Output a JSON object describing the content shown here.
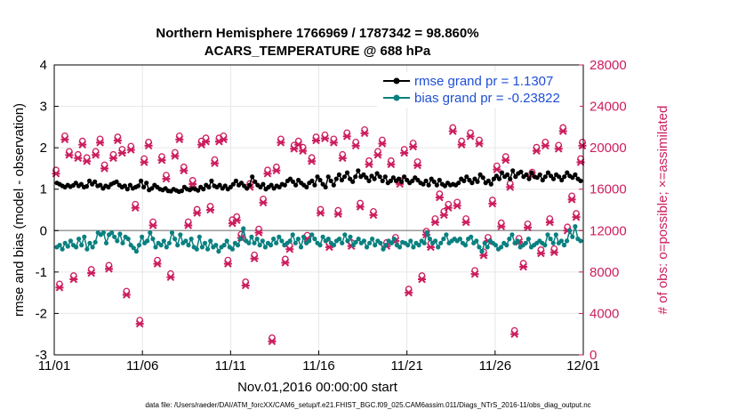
{
  "chart_data": {
    "type": "line",
    "title": "Northern Hemisphere 1766969 / 1787342 = 98.860%",
    "subtitle": "ACARS_TEMPERATURE @ 688 hPa",
    "xlabel": "Nov.01,2016 00:00:00 start",
    "ylabel": "rmse and bias (model - observation)",
    "y2label": "# of obs: o=possible; ×=assimilated",
    "footer": "data file: /Users/raeder/DAI/ATM_forcXX/CAM6_setup/f.e21.FHIST_BGC.f09_025.CAM6assim.011/Diags_NTrS_2016-11/obs_diag_output.nc",
    "x_ticks": [
      "11/01",
      "11/06",
      "11/11",
      "11/16",
      "11/21",
      "11/26",
      "12/01"
    ],
    "x_tick_days": [
      0,
      5,
      10,
      15,
      20,
      25,
      30
    ],
    "xlim": [
      0,
      30
    ],
    "ylim": [
      -3,
      4
    ],
    "y_ticks": [
      "-3",
      "-2",
      "-1",
      "0",
      "1",
      "2",
      "3",
      "4"
    ],
    "y2lim": [
      0,
      28000
    ],
    "y2_ticks": [
      "0",
      "4000",
      "8000",
      "12000",
      "16000",
      "20000",
      "24000",
      "28000"
    ],
    "zero_line": 0,
    "legend": [
      {
        "label": "rmse grand pr = 1.1307",
        "color": "#000000"
      },
      {
        "label": "bias grand pr = -0.23822",
        "color": "#0a8080"
      }
    ],
    "series": [
      {
        "name": "rmse",
        "color": "#000000",
        "values": [
          1.15,
          1.12,
          1.08,
          1.05,
          1.1,
          1.06,
          1.09,
          1.15,
          1.08,
          1.12,
          1.05,
          1.07,
          1.2,
          1.12,
          1.18,
          1.08,
          1.1,
          1.02,
          1.08,
          1.05,
          1.12,
          1.15,
          1.18,
          1.1,
          1.05,
          1.08,
          1.0,
          1.1,
          1.02,
          1.05,
          1.08,
          1.2,
          1.05,
          1.15,
          0.98,
          1.02,
          1.1,
          1.05,
          1.0,
          0.98,
          1.02,
          0.96,
          0.95,
          1.0,
          0.97,
          0.94,
          0.96,
          1.05,
          1.0,
          0.98,
          1.02,
          1.0,
          0.97,
          1.05,
          1.0,
          1.1,
          1.05,
          1.2,
          1.08,
          1.05,
          1.1,
          1.02,
          1.08,
          1.0,
          1.05,
          1.12,
          1.2,
          1.1,
          1.15,
          1.08,
          1.02,
          1.1,
          1.3,
          1.18,
          1.1,
          1.05,
          1.12,
          1.0,
          1.05,
          1.1,
          1.02,
          1.08,
          1.05,
          1.12,
          1.1,
          1.2,
          1.25,
          1.18,
          1.1,
          1.22,
          1.15,
          1.1,
          1.05,
          1.15,
          1.2,
          1.1,
          1.3,
          1.22,
          1.12,
          1.05,
          1.3,
          1.2,
          1.1,
          1.25,
          1.35,
          1.22,
          1.3,
          1.4,
          1.25,
          1.18,
          1.3,
          1.45,
          1.3,
          1.35,
          1.28,
          1.2,
          1.32,
          1.25,
          1.38,
          1.3,
          1.2,
          1.3,
          1.15,
          1.2,
          1.28,
          1.2,
          1.25,
          1.18,
          1.3,
          1.22,
          1.15,
          1.2,
          1.28,
          1.22,
          1.15,
          1.12,
          1.2,
          1.1,
          1.25,
          1.18,
          1.1,
          1.22,
          1.12,
          1.08,
          1.15,
          1.1,
          1.12,
          1.1,
          1.15,
          1.25,
          1.2,
          1.3,
          1.22,
          1.15,
          1.25,
          1.18,
          1.35,
          1.28,
          1.15,
          1.2,
          1.12,
          1.25,
          1.32,
          1.25,
          1.4,
          1.3,
          1.35,
          1.25,
          1.45,
          1.3,
          1.38,
          1.42,
          1.3,
          1.35,
          1.25,
          1.4,
          1.3,
          1.28,
          1.35,
          1.22,
          1.3,
          1.4,
          1.32,
          1.25,
          1.35,
          1.3,
          1.22,
          1.3,
          1.4,
          1.32,
          1.28,
          1.35,
          1.25,
          1.2
        ]
      },
      {
        "name": "bias",
        "color": "#0a8080",
        "values": [
          -0.4,
          -0.35,
          -0.45,
          -0.3,
          -0.38,
          -0.25,
          -0.35,
          -0.4,
          -0.2,
          -0.35,
          -0.15,
          -0.45,
          -0.3,
          -0.4,
          -0.28,
          -0.05,
          -0.1,
          -0.05,
          -0.3,
          -0.1,
          -0.05,
          -0.15,
          -0.25,
          -0.08,
          -0.3,
          -0.15,
          -0.2,
          -0.35,
          -0.42,
          -0.5,
          -0.35,
          -0.15,
          -0.3,
          -0.25,
          -0.05,
          -0.2,
          -0.4,
          -0.3,
          -0.35,
          -0.25,
          -0.4,
          -0.3,
          -0.05,
          -0.2,
          -0.35,
          -0.1,
          -0.3,
          -0.25,
          -0.35,
          -0.2,
          -0.4,
          -0.45,
          -0.15,
          -0.4,
          -0.3,
          -0.45,
          -0.25,
          -0.4,
          -0.35,
          -0.5,
          -0.4,
          -0.35,
          -0.25,
          -0.4,
          -0.45,
          -0.3,
          -0.35,
          -0.2,
          0.05,
          -0.25,
          -0.3,
          -0.15,
          -0.3,
          -0.2,
          -0.35,
          -0.25,
          -0.4,
          -0.3,
          -0.35,
          -0.2,
          -0.3,
          -0.15,
          -0.25,
          -0.35,
          -0.3,
          -0.25,
          -0.1,
          -0.3,
          -0.2,
          -0.4,
          -0.15,
          -0.3,
          -0.25,
          -0.1,
          -0.2,
          -0.3,
          -0.35,
          -0.15,
          -0.25,
          -0.2,
          -0.3,
          -0.35,
          -0.25,
          -0.2,
          -0.3,
          -0.1,
          -0.25,
          -0.15,
          -0.35,
          -0.28,
          -0.2,
          -0.3,
          -0.25,
          -0.4,
          -0.3,
          -0.2,
          -0.35,
          -0.25,
          -0.3,
          -0.45,
          -0.35,
          -0.25,
          -0.3,
          -0.2,
          -0.35,
          -0.4,
          -0.28,
          -0.3,
          -0.35,
          -0.25,
          -0.4,
          -0.3,
          -0.35,
          -0.25,
          -0.3,
          -0.05,
          -0.2,
          -0.3,
          -0.25,
          -0.4,
          -0.3,
          -0.2,
          -0.1,
          -0.3,
          -0.25,
          -0.2,
          -0.25,
          -0.2,
          -0.3,
          -0.35,
          -0.2,
          -0.15,
          -0.3,
          -0.25,
          -0.4,
          -0.5,
          -0.3,
          -0.4,
          -0.25,
          -0.3,
          -0.35,
          -0.45,
          -0.4,
          -0.3,
          -0.35,
          -0.2,
          -0.1,
          -0.3,
          -0.25,
          -0.4,
          -0.35,
          -0.3,
          -0.2,
          -0.4,
          -0.35,
          -0.3,
          -0.25,
          -0.3,
          -0.35,
          -0.1,
          -0.2,
          -0.3,
          -0.1,
          -0.3,
          -0.25,
          -0.35,
          -0.25,
          0.0,
          -0.15,
          0.1,
          -0.2,
          -0.25
        ]
      }
    ],
    "obs_series": [
      {
        "name": "obs possible / assimilated",
        "color": "#cc1d5e",
        "x": [
          0.1,
          0.3,
          0.6,
          0.85,
          1.1,
          1.35,
          1.6,
          1.85,
          2.1,
          2.35,
          2.6,
          2.85,
          3.1,
          3.35,
          3.6,
          3.85,
          4.1,
          4.35,
          4.6,
          4.85,
          5.1,
          5.35,
          5.6,
          5.85,
          6.1,
          6.35,
          6.6,
          6.85,
          7.1,
          7.35,
          7.6,
          7.85,
          8.1,
          8.35,
          8.6,
          8.85,
          9.1,
          9.35,
          9.6,
          9.85,
          10.1,
          10.35,
          10.6,
          10.85,
          11.1,
          11.35,
          11.6,
          11.85,
          12.1,
          12.35,
          12.6,
          12.85,
          13.1,
          13.35,
          13.6,
          13.85,
          14.1,
          14.35,
          14.6,
          14.85,
          15.1,
          15.35,
          15.6,
          15.85,
          16.1,
          16.35,
          16.6,
          16.85,
          17.1,
          17.35,
          17.6,
          17.85,
          18.1,
          18.35,
          18.6,
          18.85,
          19.1,
          19.35,
          19.6,
          19.85,
          20.1,
          20.35,
          20.6,
          20.85,
          21.1,
          21.35,
          21.6,
          21.85,
          22.1,
          22.35,
          22.6,
          22.85,
          23.1,
          23.35,
          23.6,
          23.85,
          24.1,
          24.35,
          24.6,
          24.85,
          25.1,
          25.35,
          25.6,
          25.85,
          26.1,
          26.35,
          26.6,
          26.85,
          27.1,
          27.35,
          27.6,
          27.85,
          28.1,
          28.35,
          28.6,
          28.85,
          29.1,
          29.35,
          29.6,
          29.85,
          29.95
        ],
        "y": [
          17500,
          6500,
          20800,
          19300,
          7300,
          19000,
          20300,
          18700,
          7900,
          19300,
          20500,
          18000,
          8300,
          19000,
          20700,
          19500,
          5800,
          19800,
          14200,
          3000,
          18600,
          20200,
          12500,
          8800,
          18800,
          17000,
          7500,
          19200,
          20800,
          17800,
          12500,
          16500,
          13700,
          20300,
          20600,
          14000,
          18500,
          20600,
          20800,
          8800,
          12700,
          13000,
          11300,
          6700,
          16200,
          9300,
          11800,
          14700,
          17500,
          1300,
          17800,
          20500,
          8900,
          10200,
          19900,
          20300,
          19700,
          11200,
          18700,
          20700,
          13700,
          20900,
          10400,
          20500,
          13600,
          19000,
          21100,
          10500,
          20200,
          14300,
          21400,
          18400,
          13500,
          19300,
          20400,
          10500,
          18400,
          11000,
          16500,
          19500,
          6000,
          20100,
          18300,
          7300,
          11600,
          10400,
          12800,
          15200,
          13500,
          14200,
          21600,
          14400,
          20300,
          12800,
          21100,
          7800,
          20400,
          9600,
          11000,
          14600,
          17900,
          12400,
          18800,
          16200,
          2000,
          10900,
          8500,
          12300,
          17300,
          19700,
          9800,
          20200,
          12800,
          9900,
          19900,
          21600,
          12000,
          15000,
          13300,
          18600,
          20200
        ]
      }
    ]
  }
}
